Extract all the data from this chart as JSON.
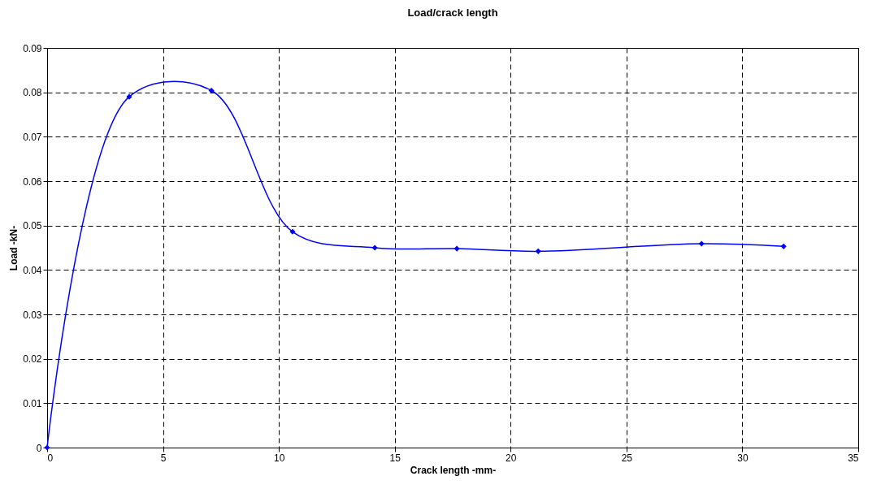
{
  "chart_data": {
    "type": "line",
    "title": "Load/crack length",
    "xlabel": "Crack length -mm-",
    "ylabel": "Load -kN-",
    "x": [
      0,
      3.54,
      7.09,
      10.59,
      14.14,
      17.68,
      21.19,
      28.24,
      31.78
    ],
    "series": [
      {
        "color": "#0000ff",
        "values": [
          0,
          0.079,
          0.0804,
          0.0486,
          0.045,
          0.0448,
          0.0442,
          0.0459,
          0.0453
        ]
      }
    ],
    "xlim": [
      0,
      35
    ],
    "xticks": [
      0,
      5,
      10,
      15,
      20,
      25,
      30,
      35
    ],
    "ylim": [
      0,
      0.09
    ],
    "yticks": [
      0,
      0.01,
      0.02,
      0.03,
      0.04,
      0.05,
      0.06,
      0.07,
      0.08,
      0.09
    ],
    "grid": true,
    "marker": "diamond",
    "line_style": "solid"
  }
}
